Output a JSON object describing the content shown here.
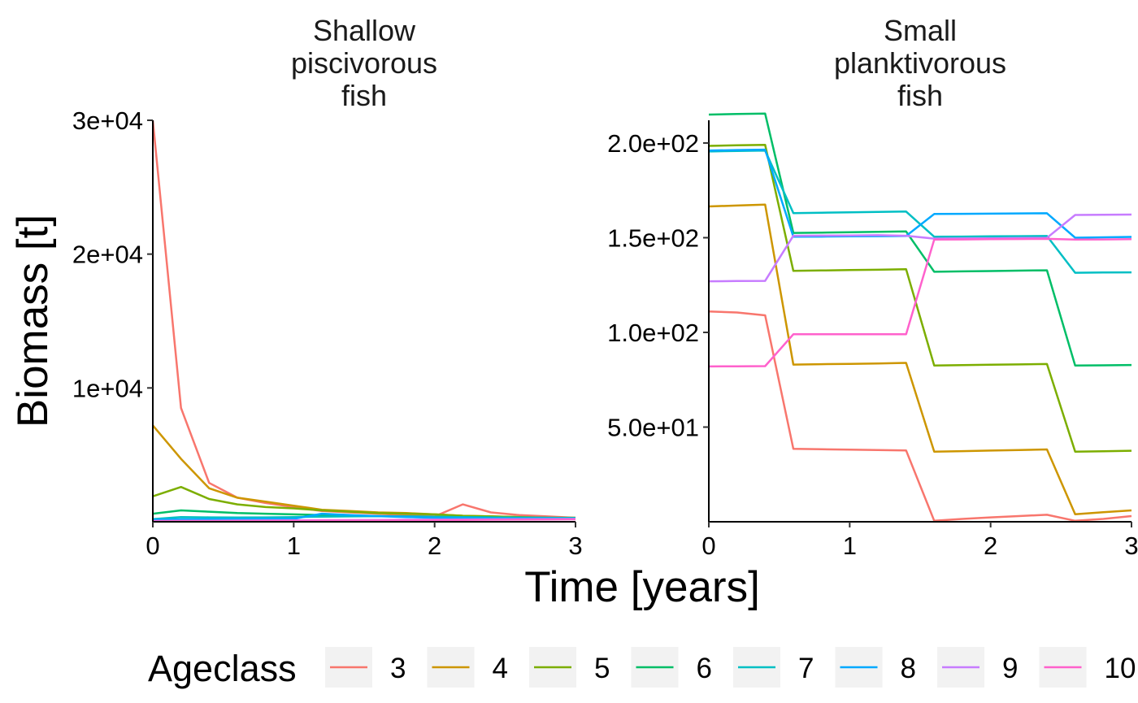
{
  "chart_data": {
    "type": "line",
    "xlabel": "Time [years]",
    "ylabel": "Biomass [t]",
    "legend": {
      "title": "Ageclass",
      "position": "bottom",
      "entries": [
        {
          "label": "3",
          "color": "#F8766D"
        },
        {
          "label": "4",
          "color": "#CD9600"
        },
        {
          "label": "5",
          "color": "#7CAE00"
        },
        {
          "label": "6",
          "color": "#00BE67"
        },
        {
          "label": "7",
          "color": "#00BFC4"
        },
        {
          "label": "8",
          "color": "#00A9FF"
        },
        {
          "label": "9",
          "color": "#C77CFF"
        },
        {
          "label": "10",
          "color": "#FF61CC"
        }
      ]
    },
    "grid": false,
    "panels": [
      {
        "strip_title": [
          "Shallow",
          "piscivorous",
          "fish"
        ],
        "xlim": [
          0,
          3
        ],
        "ylim": [
          0,
          30000
        ],
        "x_ticks": [
          0,
          1,
          2,
          3
        ],
        "x_tick_labels": [
          "0",
          "1",
          "2",
          "3"
        ],
        "y_ticks": [
          10000,
          20000,
          30000
        ],
        "y_tick_labels": [
          "1e+04",
          "2e+04",
          "3e+04"
        ],
        "x": [
          0,
          0.2,
          0.4,
          0.6,
          0.8,
          1.0,
          1.2,
          1.4,
          1.6,
          1.8,
          2.0,
          2.2,
          2.4,
          2.6,
          2.8,
          3.0
        ],
        "series": [
          {
            "name": "3",
            "values": [
              30000,
              8500,
              2900,
              1800,
              1400,
              1100,
              800,
              700,
              600,
              500,
              400,
              1300,
              700,
              500,
              400,
              300
            ]
          },
          {
            "name": "4",
            "values": [
              7200,
              4700,
              2500,
              1800,
              1500,
              1200,
              900,
              800,
              700,
              650,
              550,
              450,
              400,
              350,
              300,
              300
            ]
          },
          {
            "name": "5",
            "values": [
              1900,
              2600,
              1700,
              1300,
              1100,
              1000,
              850,
              750,
              650,
              600,
              550,
              450,
              400,
              350,
              300,
              300
            ]
          },
          {
            "name": "6",
            "values": [
              600,
              850,
              750,
              650,
              600,
              550,
              500,
              450,
              420,
              400,
              380,
              350,
              330,
              310,
              300,
              280
            ]
          },
          {
            "name": "7",
            "values": [
              200,
              350,
              330,
              320,
              330,
              350,
              380,
              400,
              420,
              400,
              380,
              350,
              330,
              310,
              300,
              280
            ]
          },
          {
            "name": "8",
            "values": [
              150,
              180,
              190,
              200,
              210,
              220,
              600,
              500,
              420,
              350,
              300,
              280,
              260,
              250,
              240,
              230
            ]
          },
          {
            "name": "9",
            "values": [
              60,
              70,
              80,
              90,
              100,
              110,
              120,
              130,
              140,
              150,
              160,
              170,
              180,
              190,
              200,
              210
            ]
          },
          {
            "name": "10",
            "values": [
              30,
              40,
              50,
              60,
              70,
              80,
              90,
              100,
              110,
              120,
              130,
              140,
              150,
              160,
              170,
              180
            ]
          }
        ]
      },
      {
        "strip_title": [
          "Small",
          "planktivorous",
          "fish"
        ],
        "xlim": [
          0,
          3
        ],
        "ylim": [
          0,
          212
        ],
        "x_ticks": [
          0,
          1,
          2,
          3
        ],
        "x_tick_labels": [
          "0",
          "1",
          "2",
          "3"
        ],
        "y_ticks": [
          50,
          100,
          150,
          200
        ],
        "y_tick_labels": [
          "5.0e+01",
          "1.0e+02",
          "1.5e+02",
          "2.0e+02"
        ],
        "x": [
          0,
          0.2,
          0.4,
          0.6,
          0.8,
          1.0,
          1.2,
          1.4,
          1.6,
          1.8,
          2.0,
          2.2,
          2.4,
          2.6,
          2.8,
          3.0
        ],
        "series": [
          {
            "name": "3",
            "values": [
              111,
              110.5,
              109,
              38.5,
              38.3,
              38.1,
              37.9,
              37.7,
              0.5,
              1.5,
              2.3,
              3.0,
              3.7,
              0.5,
              1.5,
              3.0
            ]
          },
          {
            "name": "4",
            "values": [
              166.5,
              167,
              167.5,
              83.0,
              83.2,
              83.4,
              83.6,
              83.9,
              37.0,
              37.3,
              37.6,
              37.9,
              38.2,
              4.0,
              5.0,
              6.0
            ]
          },
          {
            "name": "5",
            "values": [
              198.5,
              198.8,
              199,
              132.5,
              132.7,
              132.9,
              133.1,
              133.4,
              82.5,
              82.7,
              82.9,
              83.1,
              83.3,
              37.0,
              37.2,
              37.5
            ]
          },
          {
            "name": "6",
            "values": [
              215,
              215.3,
              215.5,
              152.5,
              152.7,
              152.9,
              153.1,
              153.3,
              132.0,
              132.2,
              132.4,
              132.6,
              132.8,
              82.5,
              82.6,
              82.8
            ]
          },
          {
            "name": "7",
            "values": [
              195.5,
              195.8,
              196,
              163.0,
              163.2,
              163.4,
              163.6,
              163.8,
              150.5,
              150.6,
              150.7,
              150.8,
              150.9,
              131.5,
              131.6,
              131.7
            ]
          },
          {
            "name": "8",
            "values": [
              196,
              196.3,
              196.5,
              150.5,
              150.6,
              150.7,
              150.8,
              150.9,
              162.5,
              162.6,
              162.7,
              162.8,
              162.9,
              150.0,
              150.2,
              150.4
            ]
          },
          {
            "name": "9",
            "values": [
              127,
              127.1,
              127.2,
              151.0,
              151.1,
              151.2,
              151.3,
              151.0,
              149.5,
              149.6,
              149.7,
              149.8,
              149.9,
              162.0,
              162.1,
              162.2
            ]
          },
          {
            "name": "10",
            "values": [
              82,
              82.1,
              82.2,
              99.0,
              99.0,
              99.0,
              99.0,
              99.0,
              149.0,
              149.1,
              149.2,
              149.3,
              149.4,
              149.0,
              149.1,
              149.2
            ]
          }
        ]
      }
    ]
  }
}
